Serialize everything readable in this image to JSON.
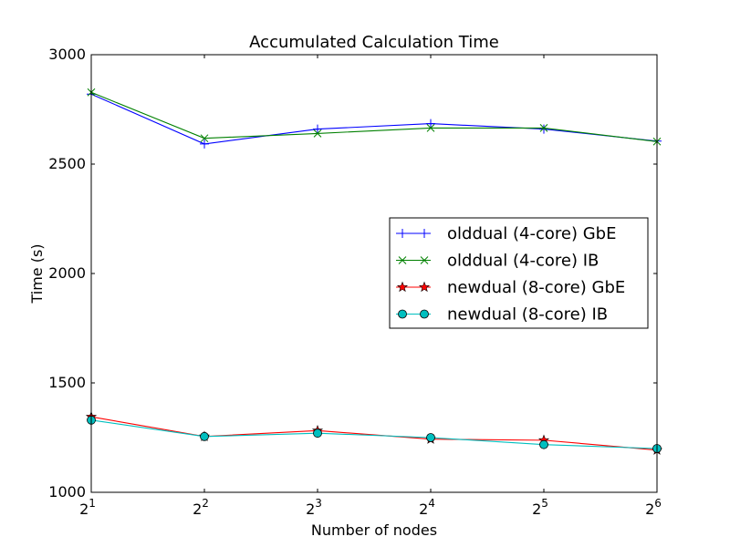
{
  "chart_data": {
    "type": "line",
    "title": "Accumulated Calculation Time",
    "xlabel": "Number of nodes",
    "ylabel": "Time (s)",
    "x_scale": "log2",
    "x": [
      2,
      4,
      8,
      16,
      32,
      64
    ],
    "x_tick_labels": [
      {
        "base": "2",
        "exp": "1"
      },
      {
        "base": "2",
        "exp": "2"
      },
      {
        "base": "2",
        "exp": "3"
      },
      {
        "base": "2",
        "exp": "4"
      },
      {
        "base": "2",
        "exp": "5"
      },
      {
        "base": "2",
        "exp": "6"
      }
    ],
    "xlim": [
      2,
      64
    ],
    "ylim": [
      1000,
      3000
    ],
    "y_ticks": [
      1000,
      1500,
      2000,
      2500,
      3000
    ],
    "grid": false,
    "legend_position": "center-right",
    "series": [
      {
        "name": "olddual (4-core) GbE",
        "color": "#0000ff",
        "marker": "plus",
        "values": [
          2820,
          2592,
          2660,
          2685,
          2660,
          2605
        ]
      },
      {
        "name": "olddual (4-core) IB",
        "color": "#008000",
        "marker": "x",
        "values": [
          2828,
          2618,
          2640,
          2665,
          2665,
          2603
        ]
      },
      {
        "name": "newdual (8-core) GbE",
        "color": "#ff0000",
        "marker": "star",
        "values": [
          1345,
          1255,
          1282,
          1243,
          1238,
          1193
        ]
      },
      {
        "name": "newdual (8-core) IB",
        "color": "#00bfbf",
        "marker": "circle",
        "values": [
          1330,
          1255,
          1270,
          1250,
          1218,
          1200
        ]
      }
    ]
  }
}
